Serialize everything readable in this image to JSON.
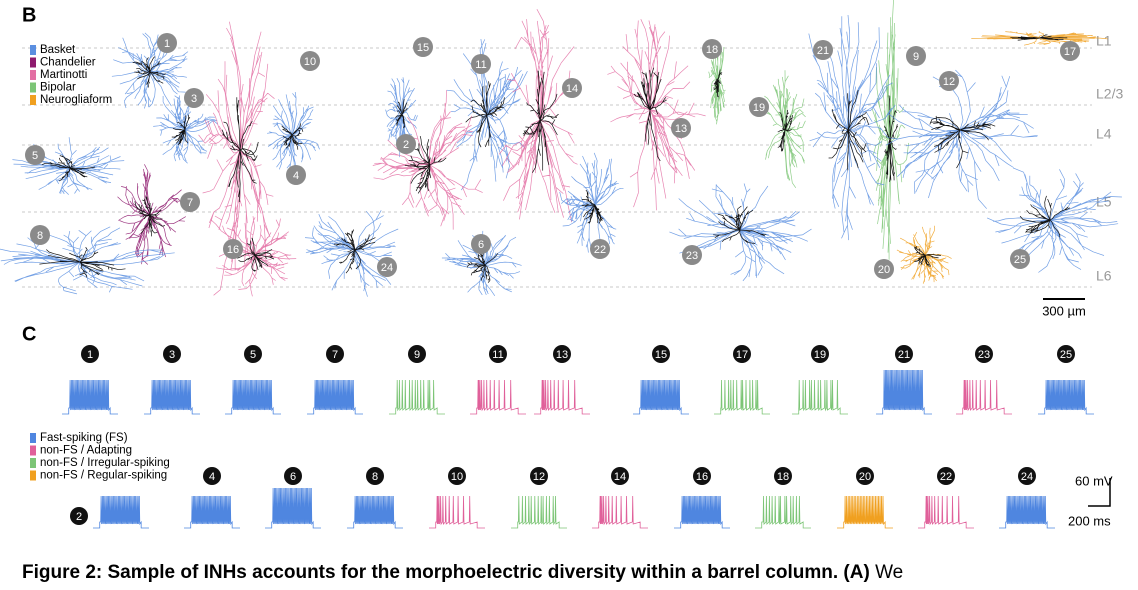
{
  "panel_b": {
    "label": "B",
    "legend": [
      {
        "name": "Basket",
        "color": "#5b8fe0"
      },
      {
        "name": "Chandelier",
        "color": "#8e1a6e"
      },
      {
        "name": "Martinotti",
        "color": "#e36fa3"
      },
      {
        "name": "Bipolar",
        "color": "#7cc576"
      },
      {
        "name": "Neurogliaform",
        "color": "#f0a020"
      }
    ],
    "layers": [
      "L1",
      "L2/3",
      "L4",
      "L5",
      "L6"
    ],
    "neurons": [
      {
        "label": "1",
        "color": "#5b8fe0"
      },
      {
        "label": "2",
        "color": "#5b8fe0"
      },
      {
        "label": "3",
        "color": "#5b8fe0"
      },
      {
        "label": "4",
        "color": "#5b8fe0"
      },
      {
        "label": "5",
        "color": "#5b8fe0"
      },
      {
        "label": "6",
        "color": "#5b8fe0"
      },
      {
        "label": "7",
        "color": "#8e1a6e"
      },
      {
        "label": "8",
        "color": "#5b8fe0"
      },
      {
        "label": "9",
        "color": "#7cc576"
      },
      {
        "label": "10",
        "color": "#e36fa3"
      },
      {
        "label": "11",
        "color": "#5b8fe0"
      },
      {
        "label": "12",
        "color": "#5b8fe0"
      },
      {
        "label": "13",
        "color": "#e36fa3"
      },
      {
        "label": "14",
        "color": "#e36fa3"
      },
      {
        "label": "15",
        "color": "#e36fa3"
      },
      {
        "label": "16",
        "color": "#e36fa3"
      },
      {
        "label": "17",
        "color": "#f0a020"
      },
      {
        "label": "18",
        "color": "#7cc576"
      },
      {
        "label": "19",
        "color": "#7cc576"
      },
      {
        "label": "20",
        "color": "#f0a020"
      },
      {
        "label": "21",
        "color": "#5b8fe0"
      },
      {
        "label": "22",
        "color": "#5b8fe0"
      },
      {
        "label": "23",
        "color": "#5b8fe0"
      },
      {
        "label": "24",
        "color": "#5b8fe0"
      },
      {
        "label": "25",
        "color": "#5b8fe0"
      }
    ],
    "scale_bar": "300 µm"
  },
  "panel_c": {
    "label": "C",
    "legend": [
      {
        "name": "Fast-spiking (FS)",
        "color": "#4f86e0"
      },
      {
        "name": "non-FS / Adapting",
        "color": "#e0609a"
      },
      {
        "name": "non-FS / Irregular-spiking",
        "color": "#7cc576"
      },
      {
        "name": "non-FS / Regular-spiking",
        "color": "#f0a020"
      }
    ],
    "top_row": [
      {
        "label": "1",
        "color": "#4f86e0"
      },
      {
        "label": "3",
        "color": "#4f86e0"
      },
      {
        "label": "5",
        "color": "#4f86e0"
      },
      {
        "label": "7",
        "color": "#4f86e0"
      },
      {
        "label": "9",
        "color": "#7cc576"
      },
      {
        "label": "11",
        "color": "#e0609a"
      },
      {
        "label": "13",
        "color": "#e0609a"
      },
      {
        "label": "15",
        "color": "#4f86e0"
      },
      {
        "label": "17",
        "color": "#7cc576"
      },
      {
        "label": "19",
        "color": "#7cc576"
      },
      {
        "label": "21",
        "color": "#4f86e0"
      },
      {
        "label": "23",
        "color": "#e0609a"
      },
      {
        "label": "25",
        "color": "#4f86e0"
      }
    ],
    "bottom_row": [
      {
        "label": "2",
        "color": "#4f86e0"
      },
      {
        "label": "4",
        "color": "#4f86e0"
      },
      {
        "label": "6",
        "color": "#4f86e0"
      },
      {
        "label": "8",
        "color": "#4f86e0"
      },
      {
        "label": "10",
        "color": "#e0609a"
      },
      {
        "label": "12",
        "color": "#7cc576"
      },
      {
        "label": "14",
        "color": "#e0609a"
      },
      {
        "label": "16",
        "color": "#4f86e0"
      },
      {
        "label": "18",
        "color": "#7cc576"
      },
      {
        "label": "20",
        "color": "#f0a020"
      },
      {
        "label": "22",
        "color": "#e0609a"
      },
      {
        "label": "24",
        "color": "#4f86e0"
      }
    ],
    "scale_bars": {
      "voltage": "60 mV",
      "time": "200 ms"
    }
  },
  "caption": {
    "bold": "Figure 2: Sample of INHs accounts for the morphoelectric diversity within a barrel column. (A)",
    "text": "We"
  }
}
